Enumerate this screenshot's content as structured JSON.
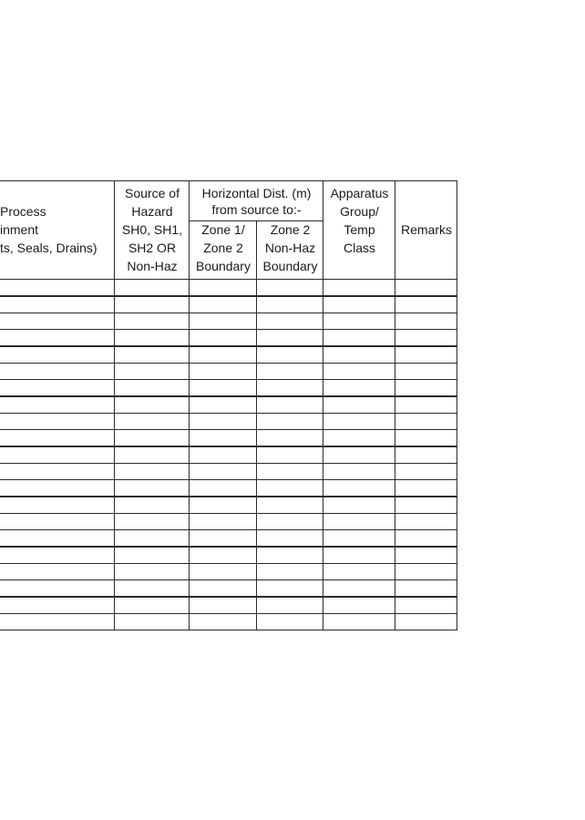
{
  "table": {
    "headers": {
      "process_containment": [
        "Process",
        "inment",
        "ts, Seals, Drains)"
      ],
      "source_of_hazard": [
        "Source of",
        "Hazard",
        "SH0, SH1,",
        "SH2 OR",
        "Non-Haz"
      ],
      "horizontal_dist": [
        "Horizontal Dist. (m)",
        "from source to:-"
      ],
      "zone1_zone2": [
        "Zone 1/",
        "Zone 2",
        "Boundary"
      ],
      "zone2_nonhaz": [
        "Zone 2",
        "Non-Haz",
        "Boundary"
      ],
      "apparatus": [
        "Apparatus",
        "Group/",
        "Temp",
        "Class"
      ],
      "remarks": "Remarks"
    },
    "empty_rows": 21
  }
}
